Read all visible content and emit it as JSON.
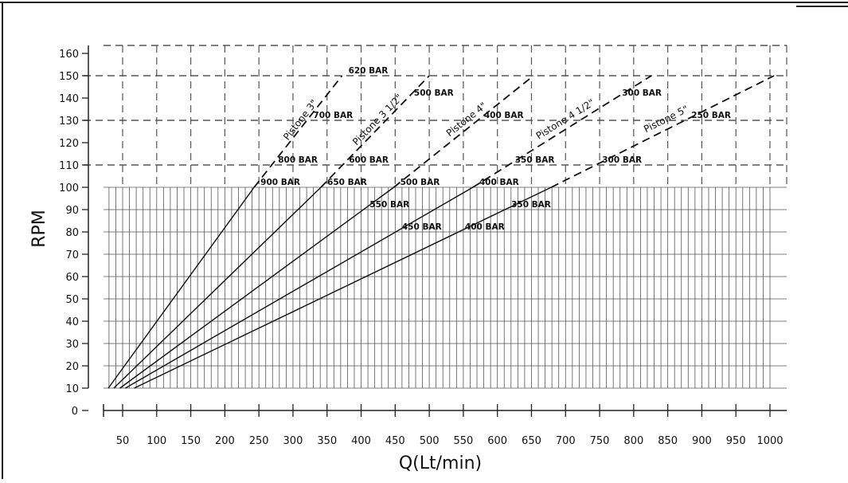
{
  "chart_data": {
    "type": "line",
    "title": "",
    "xlabel": "Q(Lt/min)",
    "ylabel": "RPM",
    "xlim": [
      30,
      1010
    ],
    "ylim": [
      0,
      165
    ],
    "x_ticks": [
      "50",
      "100",
      "150",
      "200",
      "250",
      "300",
      "350",
      "400",
      "450",
      "500",
      "550",
      "600",
      "650",
      "700",
      "750",
      "800",
      "850",
      "900",
      "950",
      "1000"
    ],
    "y_ticks": [
      "0",
      "10",
      "20",
      "30",
      "40",
      "50",
      "60",
      "70",
      "80",
      "90",
      "100",
      "110",
      "120",
      "130",
      "140",
      "150",
      "160"
    ],
    "grid": {
      "solid_region_max_rpm": 100,
      "dashed_region_max_rpm": 160,
      "x_minor_step": 10
    },
    "series": [
      {
        "name": "Pistone 3\"",
        "line": [
          [
            29,
            10
          ],
          [
            243,
            100
          ]
        ],
        "dashed": [
          [
            243,
            100
          ],
          [
            372,
            150
          ]
        ],
        "pressure_labels": [
          {
            "text": "620 BAR",
            "rpm": 150
          },
          {
            "text": "700 BAR",
            "rpm": 130
          },
          {
            "text": "800 BAR",
            "rpm": 110
          },
          {
            "text": "900 BAR",
            "rpm": 100
          }
        ]
      },
      {
        "name": "Pistone 3 1/2\"",
        "line": [
          [
            37,
            10
          ],
          [
            341,
            100
          ]
        ],
        "dashed": [
          [
            341,
            100
          ],
          [
            500,
            150
          ]
        ],
        "pressure_labels": [
          {
            "text": "500 BAR",
            "rpm": 140
          },
          {
            "text": "600 BAR",
            "rpm": 110
          },
          {
            "text": "650 BAR",
            "rpm": 100
          }
        ]
      },
      {
        "name": "Pistone 4\"",
        "line": [
          [
            46,
            10
          ],
          [
            448,
            100
          ]
        ],
        "dashed": [
          [
            448,
            100
          ],
          [
            653,
            150
          ]
        ],
        "pressure_labels": [
          {
            "text": "400 BAR",
            "rpm": 130
          },
          {
            "text": "500 BAR",
            "rpm": 100
          },
          {
            "text": "550 BAR",
            "rpm": 90
          }
        ]
      },
      {
        "name": "Pistone 4 1/2\"",
        "line": [
          [
            54,
            10
          ],
          [
            564,
            100
          ]
        ],
        "dashed": [
          [
            564,
            100
          ],
          [
            826,
            150
          ]
        ],
        "pressure_labels": [
          {
            "text": "300 BAR",
            "rpm": 140
          },
          {
            "text": "350 BAR",
            "rpm": 110
          },
          {
            "text": "400 BAR",
            "rpm": 100
          },
          {
            "text": "450 BAR",
            "rpm": 80
          }
        ]
      },
      {
        "name": "Pistone 5\"",
        "line": [
          [
            67,
            10
          ],
          [
            679,
            100
          ]
        ],
        "dashed": [
          [
            679,
            100
          ],
          [
            1006,
            150
          ]
        ],
        "pressure_labels": [
          {
            "text": "250 BAR",
            "rpm": 130
          },
          {
            "text": "300 BAR",
            "rpm": 110
          },
          {
            "text": "350 BAR",
            "rpm": 90
          },
          {
            "text": "400 BAR",
            "rpm": 80
          }
        ]
      }
    ]
  }
}
